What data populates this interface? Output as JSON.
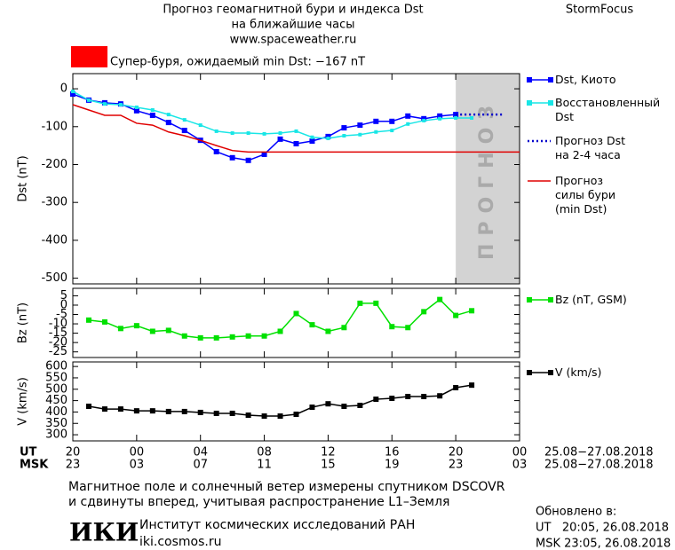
{
  "header": {
    "title": "Прогноз геомагнитной бури и индекса Dst",
    "subtitle": "на ближайшие часы",
    "url": "www.spaceweather.ru",
    "brand": "StormFocus"
  },
  "x_axis": {
    "xlim": [
      0,
      28
    ],
    "ut_label": "UT",
    "msk_label": "MSK",
    "ut_ticks": [
      {
        "value": 0,
        "label": "20"
      },
      {
        "value": 4,
        "label": "00"
      },
      {
        "value": 8,
        "label": "04"
      },
      {
        "value": 12,
        "label": "08"
      },
      {
        "value": 16,
        "label": "12"
      },
      {
        "value": 20,
        "label": "16"
      },
      {
        "value": 24,
        "label": "20"
      },
      {
        "value": 28,
        "label": "00"
      }
    ],
    "msk_ticks": [
      {
        "value": 0,
        "label": "23"
      },
      {
        "value": 4,
        "label": "03"
      },
      {
        "value": 8,
        "label": "07"
      },
      {
        "value": 12,
        "label": "11"
      },
      {
        "value": 16,
        "label": "15"
      },
      {
        "value": 20,
        "label": "19"
      },
      {
        "value": 24,
        "label": "23"
      },
      {
        "value": 28,
        "label": "03"
      }
    ],
    "ut_dates": "25.08−27.08.2018",
    "msk_dates": "25.08−27.08.2018"
  },
  "chart_data": [
    {
      "type": "line",
      "ylabel": "Dst (nT)",
      "ylim": [
        -515,
        40
      ],
      "yticks": [
        0,
        -100,
        -200,
        -300,
        -400,
        -500
      ],
      "storm_color": "#ff0000",
      "storm_label": "Супер-буря, ожидаемый min Dst: −167 nT",
      "forecast_span": [
        24,
        28
      ],
      "forecast_label": "ПРОГНОЗ",
      "series": [
        {
          "name": "Dst, Киото",
          "color": "#0000ff",
          "marker": "square",
          "x": [
            0,
            1,
            2,
            3,
            4,
            5,
            6,
            7,
            8,
            9,
            10,
            11,
            12,
            13,
            14,
            15,
            16,
            17,
            18,
            19,
            20,
            21,
            22,
            23,
            24
          ],
          "values": [
            -14,
            -30,
            -37,
            -40,
            -58,
            -70,
            -89,
            -110,
            -136,
            -166,
            -182,
            -189,
            -173,
            -133,
            -145,
            -138,
            -126,
            -103,
            -96,
            -86,
            -86,
            -72,
            -79,
            -72,
            -68
          ]
        },
        {
          "name": "Восстановленный\nDst",
          "color": "#19e6e6",
          "marker": "small",
          "x": [
            0,
            1,
            2,
            3,
            4,
            5,
            6,
            7,
            8,
            9,
            10,
            11,
            12,
            13,
            14,
            15,
            16,
            17,
            18,
            19,
            20,
            21,
            22,
            23,
            24,
            25
          ],
          "values": [
            -7,
            -30,
            -40,
            -42,
            -49,
            -56,
            -68,
            -82,
            -96,
            -112,
            -117,
            -117,
            -119,
            -117,
            -112,
            -128,
            -131,
            -124,
            -121,
            -114,
            -110,
            -93,
            -84,
            -79,
            -77,
            -77
          ]
        },
        {
          "name": "Прогноз Dst\nна 2-4 часа",
          "color": "#0000cc",
          "style": "dotted",
          "x": [
            24,
            25,
            26,
            27
          ],
          "values": [
            -68,
            -68,
            -68,
            -68
          ]
        },
        {
          "name": "Прогноз\nсилы бури\n(min Dst)",
          "color": "#e00000",
          "x": [
            0,
            1,
            2,
            3,
            4,
            5,
            6,
            7,
            8,
            9,
            10,
            11,
            28
          ],
          "values": [
            -42,
            -56,
            -70,
            -70,
            -91,
            -96,
            -114,
            -124,
            -136,
            -150,
            -163,
            -167,
            -167
          ]
        }
      ]
    },
    {
      "type": "line",
      "ylabel": "Bz (nT)",
      "ylim": [
        -28,
        9
      ],
      "yticks": [
        5,
        0,
        -5,
        -10,
        -15,
        -20,
        -25
      ],
      "series": [
        {
          "name": "Bz (nT, GSM)",
          "color": "#00e000",
          "marker": "square",
          "x": [
            1,
            2,
            3,
            4,
            5,
            6,
            7,
            8,
            9,
            10,
            11,
            12,
            13,
            14,
            15,
            16,
            17,
            18,
            19,
            20,
            21,
            22,
            23,
            24,
            25
          ],
          "values": [
            -8,
            -9,
            -12.5,
            -11,
            -14,
            -13.5,
            -16.5,
            -17.5,
            -17.5,
            -17,
            -16.5,
            -16.5,
            -14,
            -4.5,
            -10.5,
            -14,
            -12,
            1,
            1,
            -11.5,
            -12,
            -3.5,
            3,
            -5.5,
            -3
          ]
        }
      ]
    },
    {
      "type": "line",
      "ylabel": "V (km/s)",
      "ylim": [
        273,
        620
      ],
      "yticks": [
        300,
        350,
        400,
        450,
        500,
        550,
        600
      ],
      "series": [
        {
          "name": "V (km/s)",
          "color": "#000000",
          "marker": "square",
          "x": [
            1,
            2,
            3,
            4,
            5,
            6,
            7,
            8,
            9,
            10,
            11,
            12,
            13,
            14,
            15,
            16,
            17,
            18,
            19,
            20,
            21,
            22,
            23,
            24,
            25
          ],
          "values": [
            425,
            413,
            413,
            405,
            405,
            402,
            402,
            398,
            394,
            394,
            386,
            382,
            382,
            390,
            421,
            436,
            425,
            429,
            456,
            460,
            468,
            468,
            471,
            507,
            518
          ]
        }
      ]
    }
  ],
  "footer": {
    "note1": "Магнитное поле и солнечный ветер измерены спутником DSCOVR",
    "note2": "и сдвинуты вперед, учитывая распространение L1–Земля",
    "logo": "ИКИ",
    "institute": "Институт космических исследований РАН",
    "site": "iki.cosmos.ru",
    "updated": "Обновлено в:",
    "updated_ut": "UT   20:05, 26.08.2018",
    "updated_msk": "MSK 23:05, 26.08.2018"
  }
}
